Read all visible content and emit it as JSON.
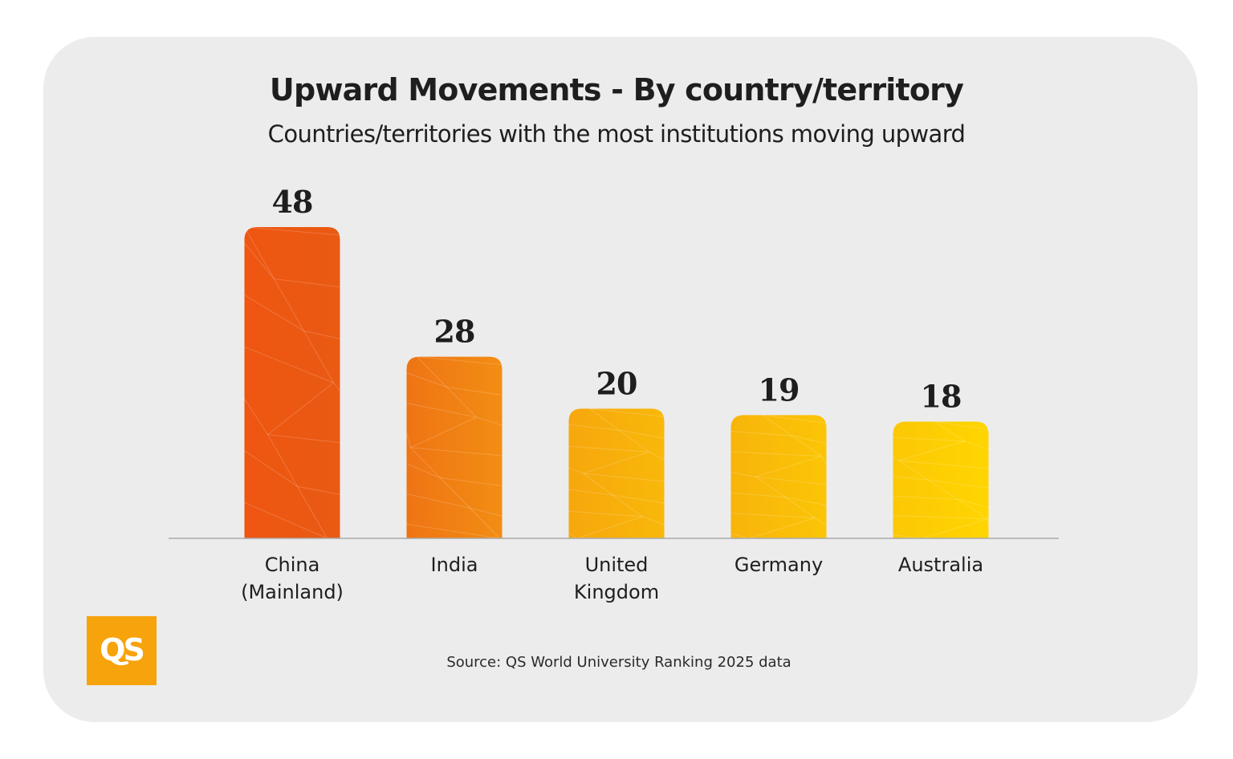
{
  "chart_data": {
    "type": "bar",
    "title": "Upward Movements - By country/territory",
    "subtitle": "Countries/territories with the most institutions moving upward",
    "categories": [
      [
        "China",
        "(Mainland)"
      ],
      [
        "India"
      ],
      [
        "United",
        "Kingdom"
      ],
      [
        "Germany"
      ],
      [
        "Australia"
      ]
    ],
    "values": [
      48,
      28,
      20,
      19,
      18
    ],
    "colors": [
      [
        "#ee5612",
        "#e95a13"
      ],
      [
        "#ef7414",
        "#f28d13"
      ],
      [
        "#f6a70d",
        "#f9b80a"
      ],
      [
        "#f8b40b",
        "#fbc506"
      ],
      [
        "#fcc806",
        "#ffd500"
      ]
    ],
    "xlabel": "",
    "ylabel": "",
    "ylim": [
      0,
      48
    ]
  },
  "source": "Source: QS World University Ranking 2025 data",
  "logo": {
    "text": "QS",
    "color": "#f7a30c"
  }
}
